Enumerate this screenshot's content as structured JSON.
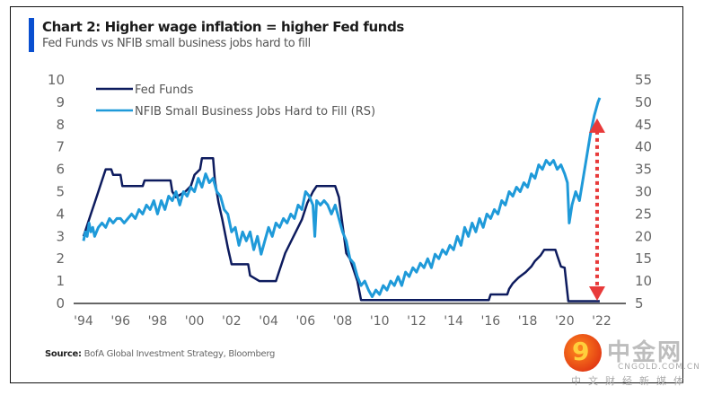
{
  "header": {
    "title": "Chart 2: Higher wage inflation = higher Fed funds",
    "subtitle": "Fed Funds vs NFIB small business jobs hard to fill",
    "accent_color": "#0a4fd0"
  },
  "footer": {
    "source_label": "Source:",
    "source_text": "BofA Global Investment Strategy, Bloomberg"
  },
  "watermark": {
    "logo_glyph": "9",
    "name": "中金网",
    "url": "CNGOLD.COM.CN",
    "tagline": "中文财经新媒体"
  },
  "chart_data": {
    "type": "line",
    "title": "Chart 2: Higher wage inflation = higher Fed funds",
    "subtitle": "Fed Funds vs NFIB small business jobs hard to fill",
    "xlabel": "",
    "ylabel_left": "",
    "ylabel_right": "",
    "x_ticks": [
      "'94",
      "'96",
      "'98",
      "'00",
      "'02",
      "'04",
      "'06",
      "'08",
      "'10",
      "'12",
      "'14",
      "'16",
      "'18",
      "'20",
      "'22"
    ],
    "x_range": [
      1994,
      2022
    ],
    "ylim_left": [
      0,
      10
    ],
    "yticks_left": [
      "0",
      "1",
      "2",
      "3",
      "4",
      "5",
      "6",
      "7",
      "8",
      "9",
      "10"
    ],
    "ylim_right": [
      5,
      55
    ],
    "yticks_right": [
      "5",
      "10",
      "15",
      "20",
      "25",
      "30",
      "35",
      "40",
      "45",
      "50",
      "55"
    ],
    "grid": false,
    "legend_position": "top-left",
    "series": [
      {
        "name": "Fed Funds",
        "axis": "left",
        "color": "#0d1b5e",
        "points": [
          [
            1994.0,
            3.0
          ],
          [
            1994.2,
            3.5
          ],
          [
            1994.4,
            4.0
          ],
          [
            1994.6,
            4.5
          ],
          [
            1994.8,
            5.0
          ],
          [
            1995.0,
            5.5
          ],
          [
            1995.2,
            6.0
          ],
          [
            1995.5,
            6.0
          ],
          [
            1995.6,
            5.75
          ],
          [
            1996.0,
            5.75
          ],
          [
            1996.1,
            5.25
          ],
          [
            1997.2,
            5.25
          ],
          [
            1997.3,
            5.5
          ],
          [
            1998.7,
            5.5
          ],
          [
            1998.8,
            5.0
          ],
          [
            1999.0,
            4.75
          ],
          [
            1999.5,
            5.0
          ],
          [
            1999.8,
            5.25
          ],
          [
            2000.0,
            5.75
          ],
          [
            2000.3,
            6.0
          ],
          [
            2000.4,
            6.5
          ],
          [
            2001.0,
            6.5
          ],
          [
            2001.1,
            5.5
          ],
          [
            2001.3,
            4.5
          ],
          [
            2001.5,
            3.75
          ],
          [
            2001.8,
            2.5
          ],
          [
            2002.0,
            1.75
          ],
          [
            2002.9,
            1.75
          ],
          [
            2003.0,
            1.25
          ],
          [
            2003.5,
            1.0
          ],
          [
            2004.4,
            1.0
          ],
          [
            2004.6,
            1.5
          ],
          [
            2004.9,
            2.25
          ],
          [
            2005.2,
            2.75
          ],
          [
            2005.5,
            3.25
          ],
          [
            2005.8,
            3.75
          ],
          [
            2006.1,
            4.5
          ],
          [
            2006.4,
            5.0
          ],
          [
            2006.6,
            5.25
          ],
          [
            2007.6,
            5.25
          ],
          [
            2007.8,
            4.75
          ],
          [
            2008.0,
            3.5
          ],
          [
            2008.2,
            2.25
          ],
          [
            2008.4,
            2.0
          ],
          [
            2008.8,
            1.0
          ],
          [
            2009.0,
            0.15
          ],
          [
            2015.9,
            0.15
          ],
          [
            2016.0,
            0.4
          ],
          [
            2016.9,
            0.4
          ],
          [
            2017.0,
            0.65
          ],
          [
            2017.2,
            0.9
          ],
          [
            2017.5,
            1.15
          ],
          [
            2017.9,
            1.4
          ],
          [
            2018.2,
            1.65
          ],
          [
            2018.4,
            1.9
          ],
          [
            2018.7,
            2.15
          ],
          [
            2018.9,
            2.4
          ],
          [
            2019.5,
            2.4
          ],
          [
            2019.6,
            2.15
          ],
          [
            2019.8,
            1.65
          ],
          [
            2020.0,
            1.6
          ],
          [
            2020.2,
            0.1
          ],
          [
            2021.9,
            0.1
          ]
        ]
      },
      {
        "name": "NFIB Small Business Jobs Hard to Fill (RS)",
        "axis": "right",
        "color": "#1f9ad9",
        "points": [
          [
            1994.0,
            19
          ],
          [
            1994.1,
            21
          ],
          [
            1994.2,
            20
          ],
          [
            1994.3,
            23
          ],
          [
            1994.4,
            21
          ],
          [
            1994.5,
            22
          ],
          [
            1994.6,
            20
          ],
          [
            1994.8,
            22
          ],
          [
            1995.0,
            23
          ],
          [
            1995.2,
            22
          ],
          [
            1995.4,
            24
          ],
          [
            1995.6,
            23
          ],
          [
            1995.8,
            24
          ],
          [
            1996.0,
            24
          ],
          [
            1996.2,
            23
          ],
          [
            1996.4,
            24
          ],
          [
            1996.6,
            25
          ],
          [
            1996.8,
            24
          ],
          [
            1997.0,
            26
          ],
          [
            1997.2,
            25
          ],
          [
            1997.4,
            27
          ],
          [
            1997.6,
            26
          ],
          [
            1997.8,
            28
          ],
          [
            1998.0,
            25
          ],
          [
            1998.2,
            28
          ],
          [
            1998.4,
            26
          ],
          [
            1998.6,
            29
          ],
          [
            1998.8,
            28
          ],
          [
            1999.0,
            30
          ],
          [
            1999.2,
            27
          ],
          [
            1999.4,
            30
          ],
          [
            1999.6,
            29
          ],
          [
            1999.8,
            31
          ],
          [
            2000.0,
            30
          ],
          [
            2000.2,
            33
          ],
          [
            2000.4,
            31
          ],
          [
            2000.6,
            34
          ],
          [
            2000.8,
            32
          ],
          [
            2001.0,
            33
          ],
          [
            2001.2,
            30
          ],
          [
            2001.4,
            29
          ],
          [
            2001.6,
            26
          ],
          [
            2001.8,
            25
          ],
          [
            2002.0,
            21
          ],
          [
            2002.2,
            22
          ],
          [
            2002.4,
            18
          ],
          [
            2002.6,
            21
          ],
          [
            2002.8,
            19
          ],
          [
            2003.0,
            21
          ],
          [
            2003.2,
            17
          ],
          [
            2003.4,
            20
          ],
          [
            2003.6,
            16
          ],
          [
            2003.8,
            19
          ],
          [
            2004.0,
            22
          ],
          [
            2004.2,
            20
          ],
          [
            2004.4,
            23
          ],
          [
            2004.6,
            22
          ],
          [
            2004.8,
            24
          ],
          [
            2005.0,
            23
          ],
          [
            2005.2,
            25
          ],
          [
            2005.4,
            24
          ],
          [
            2005.6,
            27
          ],
          [
            2005.8,
            26
          ],
          [
            2006.0,
            30
          ],
          [
            2006.2,
            29
          ],
          [
            2006.4,
            27
          ],
          [
            2006.5,
            20
          ],
          [
            2006.6,
            28
          ],
          [
            2006.8,
            27
          ],
          [
            2007.0,
            28
          ],
          [
            2007.2,
            27
          ],
          [
            2007.4,
            25
          ],
          [
            2007.6,
            27
          ],
          [
            2007.8,
            24
          ],
          [
            2008.0,
            21
          ],
          [
            2008.2,
            19
          ],
          [
            2008.4,
            15
          ],
          [
            2008.6,
            14
          ],
          [
            2008.8,
            11
          ],
          [
            2009.0,
            9
          ],
          [
            2009.2,
            10
          ],
          [
            2009.4,
            8
          ],
          [
            2009.6,
            6.5
          ],
          [
            2009.8,
            8
          ],
          [
            2010.0,
            7
          ],
          [
            2010.2,
            9
          ],
          [
            2010.4,
            8
          ],
          [
            2010.6,
            10
          ],
          [
            2010.8,
            9
          ],
          [
            2011.0,
            11
          ],
          [
            2011.2,
            9
          ],
          [
            2011.4,
            12
          ],
          [
            2011.6,
            11
          ],
          [
            2011.8,
            13
          ],
          [
            2012.0,
            12
          ],
          [
            2012.2,
            14
          ],
          [
            2012.4,
            13
          ],
          [
            2012.6,
            15
          ],
          [
            2012.8,
            13
          ],
          [
            2013.0,
            16
          ],
          [
            2013.2,
            15
          ],
          [
            2013.4,
            17
          ],
          [
            2013.6,
            16
          ],
          [
            2013.8,
            18
          ],
          [
            2014.0,
            17
          ],
          [
            2014.2,
            20
          ],
          [
            2014.4,
            18
          ],
          [
            2014.6,
            22
          ],
          [
            2014.8,
            20
          ],
          [
            2015.0,
            23
          ],
          [
            2015.2,
            21
          ],
          [
            2015.4,
            24
          ],
          [
            2015.6,
            22
          ],
          [
            2015.8,
            25
          ],
          [
            2016.0,
            24
          ],
          [
            2016.2,
            26
          ],
          [
            2016.4,
            25
          ],
          [
            2016.6,
            28
          ],
          [
            2016.8,
            27
          ],
          [
            2017.0,
            30
          ],
          [
            2017.2,
            29
          ],
          [
            2017.4,
            31
          ],
          [
            2017.6,
            30
          ],
          [
            2017.8,
            32
          ],
          [
            2018.0,
            31
          ],
          [
            2018.2,
            34
          ],
          [
            2018.4,
            33
          ],
          [
            2018.6,
            36
          ],
          [
            2018.8,
            35
          ],
          [
            2019.0,
            37
          ],
          [
            2019.2,
            36
          ],
          [
            2019.4,
            37
          ],
          [
            2019.6,
            35
          ],
          [
            2019.8,
            36
          ],
          [
            2020.0,
            34
          ],
          [
            2020.15,
            32
          ],
          [
            2020.25,
            23
          ],
          [
            2020.4,
            27
          ],
          [
            2020.6,
            30
          ],
          [
            2020.8,
            28
          ],
          [
            2021.0,
            33
          ],
          [
            2021.2,
            38
          ],
          [
            2021.4,
            43
          ],
          [
            2021.6,
            47
          ],
          [
            2021.8,
            50
          ],
          [
            2021.9,
            51
          ]
        ]
      }
    ],
    "annotations": [
      {
        "type": "double-arrow",
        "description": "red dashed vertical double-headed arrow spanning from Fed Funds level to NFIB level at 2022",
        "color": "#e83a3a",
        "x": 2021.95,
        "from_left_value": 0.2,
        "to_left_value": 8.2
      }
    ]
  }
}
